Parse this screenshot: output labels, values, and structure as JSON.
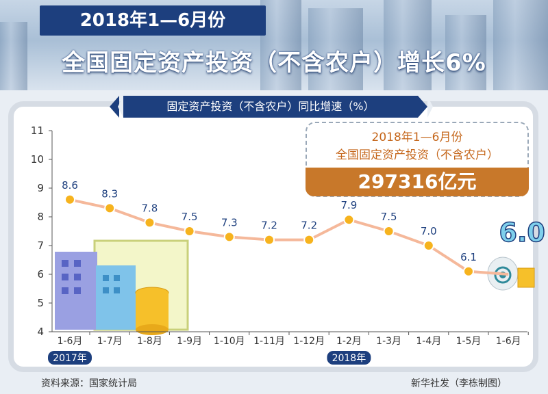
{
  "header": {
    "subtitle": "2018年1—6月份",
    "title": "全国固定资产投资（不含农户）增长6%"
  },
  "chart_header": "固定资产投资（不含农户）同比增速（%）",
  "info_box": {
    "line1": "2018年1—6月份",
    "line2": "全国固定资产投资（不含农户）",
    "amount": "297316亿元"
  },
  "highlight_value": "6.0",
  "year_labels": [
    "2017年",
    "2018年"
  ],
  "footer": {
    "source": "资料来源：国家统计局",
    "credit": "新华社发（李栋制图）"
  },
  "colors": {
    "navy": "#1d3f7e",
    "line": "#f5b89a",
    "marker": "#f6b31e",
    "accent": "#c8782a"
  },
  "chart_data": {
    "type": "line",
    "title": "固定资产投资（不含农户）同比增速（%）",
    "categories": [
      "1-6月",
      "1-7月",
      "1-8月",
      "1-9月",
      "1-10月",
      "1-11月",
      "1-12月",
      "1-2月",
      "1-3月",
      "1-4月",
      "1-5月",
      "1-6月"
    ],
    "series": [
      {
        "values": [
          8.6,
          8.3,
          7.8,
          7.5,
          7.3,
          7.2,
          7.2,
          7.9,
          7.5,
          7.0,
          6.1,
          6.0
        ]
      }
    ],
    "data_labels": [
      "8.6",
      "8.3",
      "7.8",
      "7.5",
      "7.3",
      "7.2",
      "7.2",
      "7.9",
      "7.5",
      "7.0",
      "6.1"
    ],
    "yticks": [
      "4",
      "5",
      "6",
      "7",
      "8",
      "9",
      "10",
      "11"
    ],
    "ylim": [
      4,
      11
    ],
    "grid": false,
    "legend": "none"
  }
}
